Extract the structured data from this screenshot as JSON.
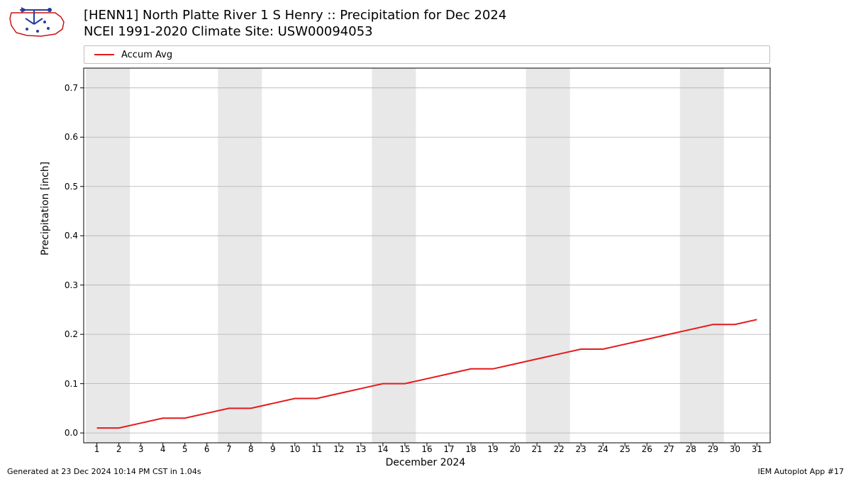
{
  "title_line1": "[HENN1] North Platte River 1 S Henry :: Precipitation for Dec 2024",
  "title_line2": "NCEI 1991-2020 Climate Site: USW00094053",
  "legend_label": "Accum Avg",
  "ylabel": "Precipitation [inch]",
  "xlabel": "December 2024",
  "footer_left": "Generated at 23 Dec 2024 10:14 PM CST in 1.04s",
  "footer_right": "IEM Autoplot App #17",
  "chart": {
    "type": "line",
    "line_color": "#e41a1c",
    "line_width": 2,
    "background_color": "#ffffff",
    "grid_color": "#b0b0b0",
    "weekend_band_color": "#e8e8e8",
    "axis_color": "#000000",
    "x": [
      1,
      2,
      3,
      4,
      5,
      6,
      7,
      8,
      9,
      10,
      11,
      12,
      13,
      14,
      15,
      16,
      17,
      18,
      19,
      20,
      21,
      22,
      23,
      24,
      25,
      26,
      27,
      28,
      29,
      30,
      31
    ],
    "y": [
      0.01,
      0.01,
      0.02,
      0.03,
      0.03,
      0.04,
      0.05,
      0.05,
      0.06,
      0.07,
      0.07,
      0.08,
      0.09,
      0.1,
      0.1,
      0.11,
      0.12,
      0.13,
      0.13,
      0.14,
      0.15,
      0.16,
      0.17,
      0.17,
      0.18,
      0.19,
      0.2,
      0.21,
      0.22,
      0.22,
      0.23
    ],
    "xlim": [
      0.4,
      31.6
    ],
    "ylim": [
      -0.02,
      0.74
    ],
    "yticks": [
      0.0,
      0.1,
      0.2,
      0.3,
      0.4,
      0.5,
      0.6,
      0.7
    ],
    "ytick_labels": [
      "0.0",
      "0.1",
      "0.2",
      "0.3",
      "0.4",
      "0.5",
      "0.6",
      "0.7"
    ],
    "xticks": [
      1,
      2,
      3,
      4,
      5,
      6,
      7,
      8,
      9,
      10,
      11,
      12,
      13,
      14,
      15,
      16,
      17,
      18,
      19,
      20,
      21,
      22,
      23,
      24,
      25,
      26,
      27,
      28,
      29,
      30,
      31
    ],
    "weekend_bands": [
      [
        1,
        2
      ],
      [
        7,
        8
      ],
      [
        14,
        15
      ],
      [
        21,
        22
      ],
      [
        28,
        29
      ]
    ],
    "tick_fontsize": 12,
    "label_fontsize": 14,
    "title_fontsize": 18
  }
}
